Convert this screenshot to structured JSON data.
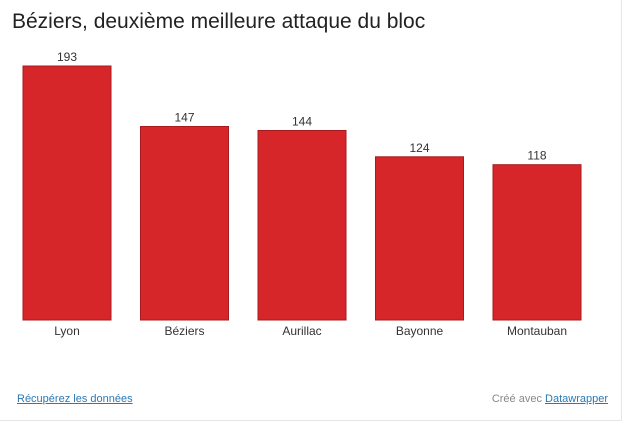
{
  "title": "Béziers, deuxième meilleure attaque du bloc",
  "footer": {
    "download_label": "Récupérez les données",
    "credit_prefix": "Créé avec",
    "credit_link": "Datawrapper"
  },
  "colors": {
    "bar": "#d7262a",
    "bar_stroke": "#a81a1d",
    "axis": "#333333"
  },
  "chart_data": {
    "type": "bar",
    "title": "Béziers, deuxième meilleure attaque du bloc",
    "categories": [
      "Lyon",
      "Béziers",
      "Aurillac",
      "Bayonne",
      "Montauban"
    ],
    "values": [
      193,
      147,
      144,
      124,
      118
    ],
    "xlabel": "",
    "ylabel": "",
    "ylim": [
      0,
      193
    ],
    "grid": false,
    "legend": "none"
  }
}
